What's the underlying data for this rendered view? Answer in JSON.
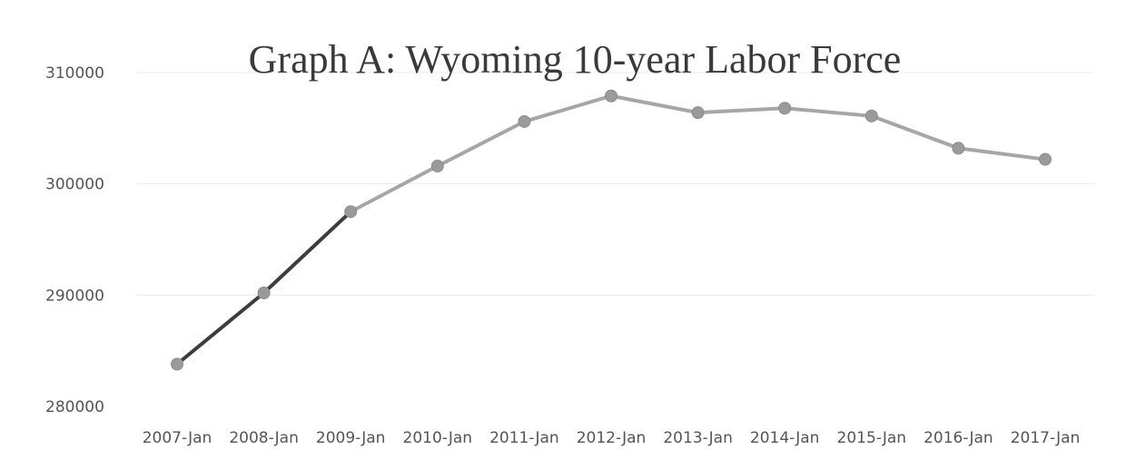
{
  "chart_data": {
    "type": "line",
    "title": "Graph A: Wyoming 10-year Labor Force",
    "xlabel": "",
    "ylabel": "",
    "categories": [
      "2007-Jan",
      "2008-Jan",
      "2009-Jan",
      "2010-Jan",
      "2011-Jan",
      "2012-Jan",
      "2013-Jan",
      "2014-Jan",
      "2015-Jan",
      "2016-Jan",
      "2017-Jan"
    ],
    "values": [
      283800,
      290200,
      297500,
      301600,
      305600,
      307900,
      306400,
      306800,
      306100,
      303200,
      302200
    ],
    "ylim": [
      280000,
      310000
    ],
    "yticks": [
      "280000",
      "290000",
      "300000",
      "310000"
    ],
    "grid": true,
    "legend": "none",
    "colors": {
      "line": "#a6a6a6",
      "early_segment": "#3d3d3d",
      "marker": "#9a9a9a"
    }
  }
}
